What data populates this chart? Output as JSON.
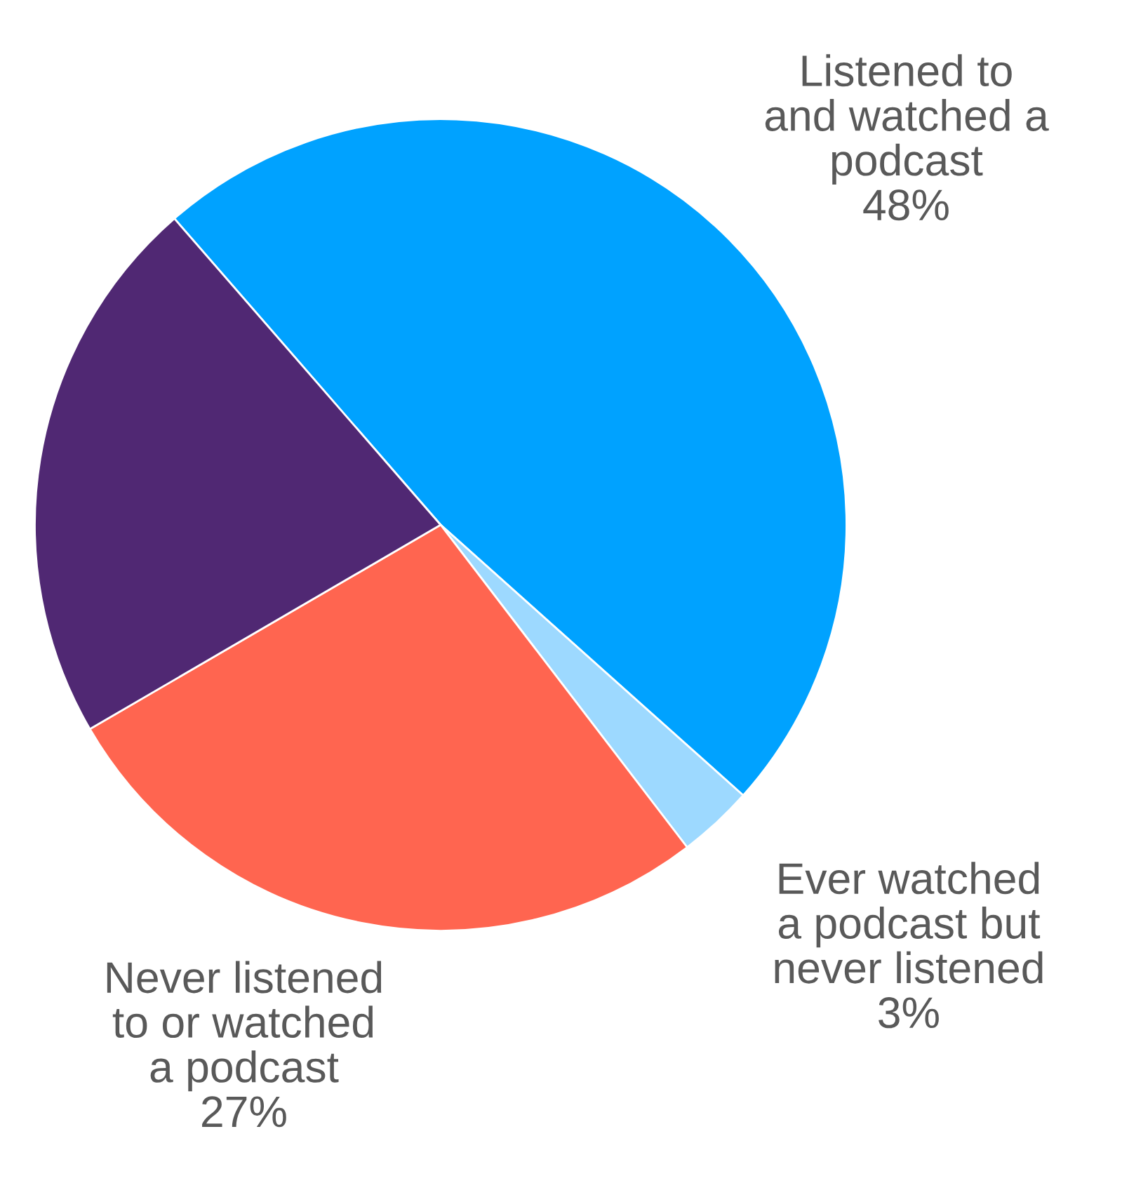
{
  "chart_data": {
    "type": "pie",
    "categories": [
      "Listened to\nand watched a\npodcast",
      "Ever watched\na podcast but\nnever listened",
      "Never listened\nto or watched\na podcast",
      null
    ],
    "values": [
      48,
      3,
      27,
      22
    ],
    "colors": [
      "#00a2ff",
      "#9dd9ff",
      "#ff6550",
      "#502873"
    ],
    "value_labels": [
      "48%",
      "3%",
      "27%",
      null
    ]
  }
}
